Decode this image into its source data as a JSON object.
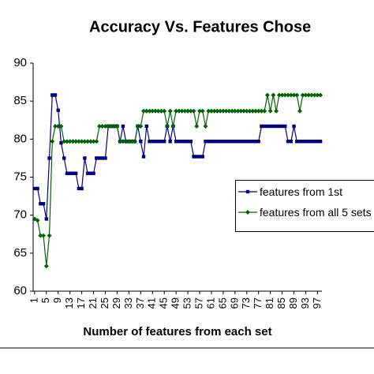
{
  "chart_data": {
    "type": "line",
    "title": "Accuracy Vs. Features Chose",
    "x_label": "Number of features from each set",
    "x": [
      1,
      2,
      3,
      4,
      5,
      6,
      7,
      8,
      9,
      10,
      11,
      12,
      13,
      14,
      15,
      16,
      17,
      18,
      19,
      20,
      21,
      22,
      23,
      24,
      25,
      26,
      27,
      28,
      29,
      30,
      31,
      32,
      33,
      34,
      35,
      36,
      37,
      38,
      39,
      40,
      41,
      42,
      43,
      44,
      45,
      46,
      47,
      48,
      49,
      50,
      51,
      52,
      53,
      54,
      55,
      56,
      57,
      58,
      59,
      60,
      61,
      62,
      63,
      64,
      65,
      66,
      67,
      68,
      69,
      70,
      71,
      72,
      73,
      74,
      75,
      76,
      77,
      78,
      79,
      80,
      81,
      82,
      83,
      84,
      85,
      86,
      87,
      88,
      89,
      90,
      91,
      92,
      93,
      94,
      95,
      96,
      97,
      98
    ],
    "series": [
      {
        "name": "features from 1st",
        "color": "#000080",
        "marker": "square",
        "values": [
          73.5,
          73.5,
          71.5,
          71.5,
          69.5,
          77.5,
          85.8,
          85.8,
          83.8,
          79.5,
          77.5,
          75.5,
          75.5,
          75.5,
          75.5,
          73.5,
          73.5,
          77.5,
          75.5,
          75.5,
          75.5,
          77.5,
          77.5,
          77.5,
          77.5,
          81.7,
          81.7,
          81.7,
          81.7,
          79.7,
          81.7,
          79.7,
          79.7,
          79.7,
          79.7,
          81.7,
          79.7,
          77.7,
          81.7,
          79.7,
          79.7,
          79.7,
          79.7,
          79.7,
          79.7,
          81.7,
          79.7,
          81.7,
          79.7,
          79.7,
          79.7,
          79.7,
          79.7,
          79.7,
          77.7,
          77.7,
          77.7,
          77.7,
          79.7,
          79.7,
          79.7,
          79.7,
          79.7,
          79.7,
          79.7,
          79.7,
          79.7,
          79.7,
          79.7,
          79.7,
          79.7,
          79.7,
          79.7,
          79.7,
          79.7,
          79.7,
          79.7,
          81.7,
          81.7,
          81.7,
          81.7,
          81.7,
          81.7,
          81.7,
          81.7,
          81.7,
          79.7,
          79.7,
          81.7,
          79.7,
          79.7,
          79.7,
          79.7,
          79.7,
          79.7,
          79.7,
          79.7,
          79.7
        ]
      },
      {
        "name": "features from all 5 sets",
        "color": "#006400",
        "marker": "diamond",
        "values": [
          69.5,
          69.3,
          67.3,
          67.3,
          63.3,
          67.3,
          79.7,
          81.7,
          81.7,
          81.7,
          79.7,
          79.7,
          79.7,
          79.7,
          79.7,
          79.7,
          79.7,
          79.7,
          79.7,
          79.7,
          79.7,
          79.7,
          81.7,
          81.7,
          81.7,
          81.7,
          81.7,
          81.7,
          81.7,
          79.7,
          79.7,
          79.7,
          79.7,
          79.7,
          79.7,
          81.7,
          81.7,
          83.7,
          83.7,
          83.7,
          83.7,
          83.7,
          83.7,
          83.7,
          83.7,
          81.7,
          83.7,
          81.7,
          83.7,
          83.7,
          83.7,
          83.7,
          83.7,
          83.7,
          83.7,
          81.7,
          83.7,
          83.7,
          81.7,
          83.7,
          83.7,
          83.7,
          83.7,
          83.7,
          83.7,
          83.7,
          83.7,
          83.7,
          83.7,
          83.7,
          83.7,
          83.7,
          83.7,
          83.7,
          83.7,
          83.7,
          83.7,
          83.7,
          83.7,
          85.8,
          83.7,
          85.8,
          83.7,
          85.8,
          85.8,
          85.8,
          85.8,
          85.8,
          85.8,
          85.8,
          83.7,
          85.8,
          85.8,
          85.8,
          85.8,
          85.8,
          85.8,
          85.8
        ]
      }
    ],
    "xlim": [
      0.5,
      98.5
    ],
    "xticks": [
      1,
      5,
      9,
      13,
      17,
      21,
      25,
      29,
      33,
      37,
      41,
      45,
      49,
      53,
      57,
      61,
      65,
      69,
      73,
      77,
      81,
      85,
      89,
      93,
      97
    ],
    "ylim": [
      60,
      90
    ],
    "yticks": [
      60,
      65,
      70,
      75,
      80,
      85,
      90
    ],
    "grid": false,
    "legend": "right"
  }
}
